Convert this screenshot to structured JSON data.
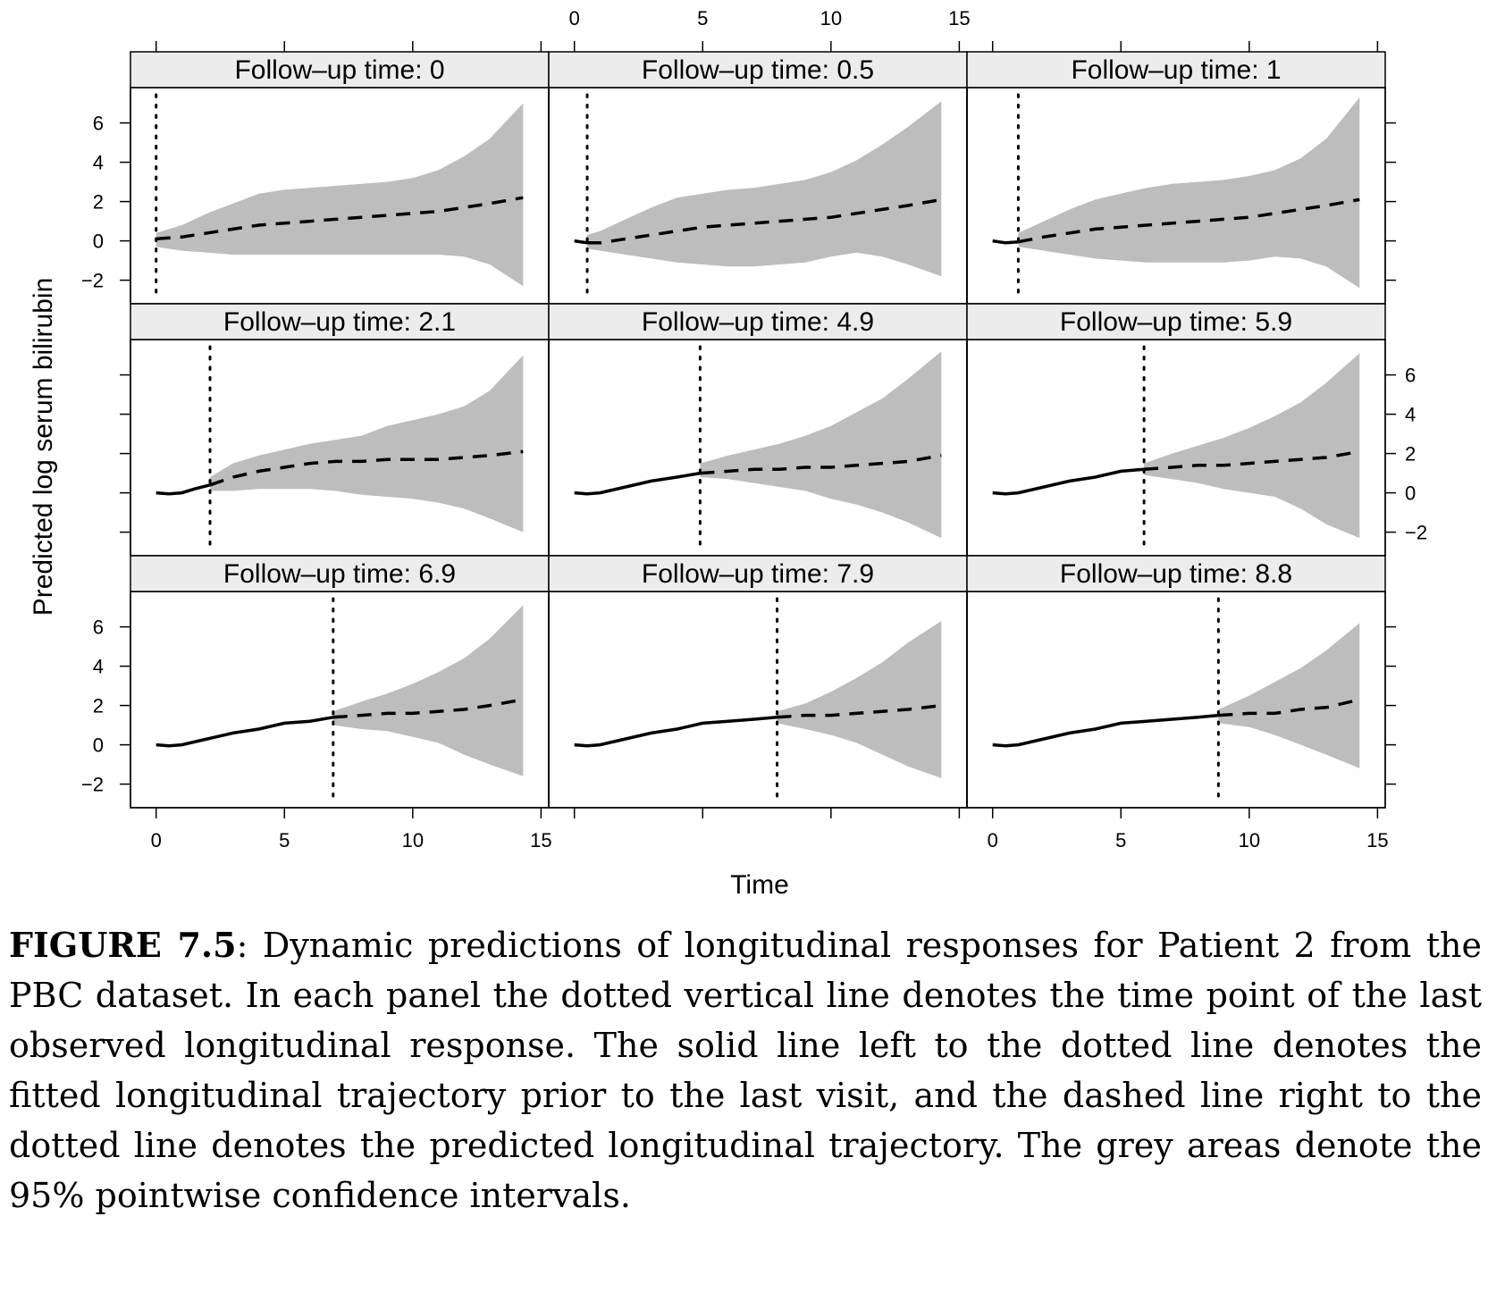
{
  "chart_data": {
    "type": "line",
    "layout": "3x3 panels",
    "panels": [
      {
        "title": "Follow–up time: 0",
        "last_visit": 0,
        "fitted": {
          "x": [
            0
          ],
          "y": [
            0.1
          ]
        },
        "predicted": {
          "x": [
            0,
            1,
            2,
            3,
            4,
            5,
            6,
            7,
            8,
            9,
            10,
            11,
            12,
            13,
            14.3
          ],
          "y": [
            0.1,
            0.2,
            0.4,
            0.6,
            0.8,
            0.9,
            1.0,
            1.1,
            1.2,
            1.3,
            1.4,
            1.5,
            1.7,
            1.9,
            2.2
          ]
        },
        "ci": {
          "x": [
            0,
            1,
            2,
            3,
            4,
            5,
            6,
            7,
            8,
            9,
            10,
            11,
            12,
            13,
            14.3
          ],
          "lower": [
            -0.3,
            -0.5,
            -0.6,
            -0.7,
            -0.7,
            -0.7,
            -0.7,
            -0.7,
            -0.7,
            -0.7,
            -0.7,
            -0.7,
            -0.8,
            -1.2,
            -2.3
          ],
          "upper": [
            0.4,
            0.8,
            1.4,
            1.9,
            2.4,
            2.6,
            2.7,
            2.8,
            2.9,
            3.0,
            3.2,
            3.6,
            4.3,
            5.2,
            7.0
          ]
        }
      },
      {
        "title": "Follow–up time: 0.5",
        "last_visit": 0.5,
        "fitted": {
          "x": [
            0,
            0.5
          ],
          "y": [
            0.0,
            -0.1
          ]
        },
        "predicted": {
          "x": [
            0.5,
            1,
            2,
            3,
            4,
            5,
            6,
            7,
            8,
            9,
            10,
            11,
            12,
            13,
            14.3
          ],
          "y": [
            -0.1,
            -0.1,
            0.1,
            0.3,
            0.5,
            0.7,
            0.8,
            0.9,
            1.0,
            1.1,
            1.2,
            1.4,
            1.6,
            1.8,
            2.1
          ]
        },
        "ci": {
          "x": [
            0.5,
            1,
            2,
            3,
            4,
            5,
            6,
            7,
            8,
            9,
            10,
            11,
            12,
            13,
            14.3
          ],
          "lower": [
            -0.4,
            -0.5,
            -0.7,
            -0.9,
            -1.1,
            -1.2,
            -1.3,
            -1.3,
            -1.2,
            -1.1,
            -0.8,
            -0.6,
            -0.8,
            -1.2,
            -1.8
          ],
          "upper": [
            0.3,
            0.5,
            1.1,
            1.7,
            2.2,
            2.4,
            2.6,
            2.7,
            2.9,
            3.1,
            3.5,
            4.1,
            4.9,
            5.8,
            7.1
          ]
        }
      },
      {
        "title": "Follow–up time: 1",
        "last_visit": 1,
        "fitted": {
          "x": [
            0,
            0.5,
            1
          ],
          "y": [
            0.0,
            -0.1,
            -0.05
          ]
        },
        "predicted": {
          "x": [
            1,
            2,
            3,
            4,
            5,
            6,
            7,
            8,
            9,
            10,
            11,
            12,
            13,
            14.3
          ],
          "y": [
            -0.05,
            0.2,
            0.4,
            0.6,
            0.7,
            0.8,
            0.9,
            1.0,
            1.1,
            1.2,
            1.4,
            1.6,
            1.8,
            2.1
          ]
        },
        "ci": {
          "x": [
            1,
            2,
            3,
            4,
            5,
            6,
            7,
            8,
            9,
            10,
            11,
            12,
            13,
            14.3
          ],
          "lower": [
            -0.3,
            -0.5,
            -0.7,
            -0.9,
            -1.0,
            -1.1,
            -1.1,
            -1.1,
            -1.1,
            -1.0,
            -0.8,
            -0.9,
            -1.3,
            -2.4
          ],
          "upper": [
            0.4,
            1.0,
            1.6,
            2.1,
            2.4,
            2.7,
            2.9,
            3.0,
            3.1,
            3.3,
            3.6,
            4.2,
            5.2,
            7.3
          ]
        }
      },
      {
        "title": "Follow–up time: 2.1",
        "last_visit": 2.1,
        "fitted": {
          "x": [
            0,
            0.5,
            1,
            1.5,
            2.1
          ],
          "y": [
            0.0,
            -0.05,
            0.0,
            0.2,
            0.4
          ]
        },
        "predicted": {
          "x": [
            2.1,
            3,
            4,
            5,
            6,
            7,
            8,
            9,
            10,
            11,
            12,
            13,
            14.3
          ],
          "y": [
            0.4,
            0.8,
            1.1,
            1.3,
            1.5,
            1.6,
            1.6,
            1.7,
            1.7,
            1.7,
            1.8,
            1.9,
            2.1
          ]
        },
        "ci": {
          "x": [
            2.1,
            3,
            4,
            5,
            6,
            7,
            8,
            9,
            10,
            11,
            12,
            13,
            14.3
          ],
          "lower": [
            0.1,
            0.1,
            0.2,
            0.2,
            0.2,
            0.1,
            -0.1,
            -0.2,
            -0.3,
            -0.5,
            -0.8,
            -1.3,
            -2.0
          ],
          "upper": [
            0.8,
            1.5,
            1.9,
            2.2,
            2.5,
            2.7,
            2.9,
            3.4,
            3.7,
            4.0,
            4.4,
            5.2,
            7.0
          ]
        }
      },
      {
        "title": "Follow–up time: 4.9",
        "last_visit": 4.9,
        "fitted": {
          "x": [
            0,
            0.5,
            1,
            2,
            3,
            4,
            4.9
          ],
          "y": [
            0.0,
            -0.05,
            0.0,
            0.3,
            0.6,
            0.8,
            1.0
          ]
        },
        "predicted": {
          "x": [
            4.9,
            6,
            7,
            8,
            9,
            10,
            11,
            12,
            13,
            14.3
          ],
          "y": [
            1.0,
            1.1,
            1.2,
            1.2,
            1.3,
            1.3,
            1.4,
            1.5,
            1.6,
            1.9
          ]
        },
        "ci": {
          "x": [
            4.9,
            6,
            7,
            8,
            9,
            10,
            11,
            12,
            13,
            14.3
          ],
          "lower": [
            0.8,
            0.7,
            0.5,
            0.3,
            0.1,
            -0.3,
            -0.6,
            -1.0,
            -1.5,
            -2.3
          ],
          "upper": [
            1.5,
            1.9,
            2.2,
            2.5,
            2.9,
            3.4,
            4.1,
            4.8,
            5.8,
            7.2
          ]
        }
      },
      {
        "title": "Follow–up time: 5.9",
        "last_visit": 5.9,
        "fitted": {
          "x": [
            0,
            0.5,
            1,
            2,
            3,
            4,
            5,
            5.9
          ],
          "y": [
            0.0,
            -0.05,
            0.0,
            0.3,
            0.6,
            0.8,
            1.1,
            1.2
          ]
        },
        "predicted": {
          "x": [
            5.9,
            7,
            8,
            9,
            10,
            11,
            12,
            13,
            14.3
          ],
          "y": [
            1.2,
            1.3,
            1.4,
            1.4,
            1.5,
            1.6,
            1.7,
            1.8,
            2.1
          ]
        },
        "ci": {
          "x": [
            5.9,
            7,
            8,
            9,
            10,
            11,
            12,
            13,
            14.3
          ],
          "lower": [
            0.9,
            0.7,
            0.5,
            0.2,
            0.0,
            -0.2,
            -0.8,
            -1.6,
            -2.3
          ],
          "upper": [
            1.5,
            2.0,
            2.4,
            2.8,
            3.3,
            3.9,
            4.6,
            5.6,
            7.1
          ]
        }
      },
      {
        "title": "Follow–up time: 6.9",
        "last_visit": 6.9,
        "fitted": {
          "x": [
            0,
            0.5,
            1,
            2,
            3,
            4,
            5,
            6,
            6.9
          ],
          "y": [
            0.0,
            -0.05,
            0.0,
            0.3,
            0.6,
            0.8,
            1.1,
            1.2,
            1.4
          ]
        },
        "predicted": {
          "x": [
            6.9,
            8,
            9,
            10,
            11,
            12,
            13,
            14.3
          ],
          "y": [
            1.4,
            1.5,
            1.6,
            1.6,
            1.7,
            1.8,
            2.0,
            2.3
          ]
        },
        "ci": {
          "x": [
            6.9,
            8,
            9,
            10,
            11,
            12,
            13,
            14.3
          ],
          "lower": [
            1.0,
            0.8,
            0.7,
            0.4,
            0.1,
            -0.5,
            -1.0,
            -1.6
          ],
          "upper": [
            1.7,
            2.2,
            2.6,
            3.1,
            3.7,
            4.4,
            5.4,
            7.1
          ]
        }
      },
      {
        "title": "Follow–up time: 7.9",
        "last_visit": 7.9,
        "fitted": {
          "x": [
            0,
            0.5,
            1,
            2,
            3,
            4,
            5,
            6,
            7,
            7.9
          ],
          "y": [
            0.0,
            -0.05,
            0.0,
            0.3,
            0.6,
            0.8,
            1.1,
            1.2,
            1.3,
            1.4
          ]
        },
        "predicted": {
          "x": [
            7.9,
            9,
            10,
            11,
            12,
            13,
            14.3
          ],
          "y": [
            1.4,
            1.5,
            1.5,
            1.6,
            1.7,
            1.8,
            2.0
          ]
        },
        "ci": {
          "x": [
            7.9,
            9,
            10,
            11,
            12,
            13,
            14.3
          ],
          "lower": [
            1.1,
            0.8,
            0.5,
            0.1,
            -0.5,
            -1.1,
            -1.7
          ],
          "upper": [
            1.7,
            2.1,
            2.7,
            3.4,
            4.2,
            5.2,
            6.3
          ]
        }
      },
      {
        "title": "Follow–up time: 8.8",
        "last_visit": 8.8,
        "fitted": {
          "x": [
            0,
            0.5,
            1,
            2,
            3,
            4,
            5,
            6,
            7,
            8,
            8.8
          ],
          "y": [
            0.0,
            -0.05,
            0.0,
            0.3,
            0.6,
            0.8,
            1.1,
            1.2,
            1.3,
            1.4,
            1.5
          ]
        },
        "predicted": {
          "x": [
            8.8,
            10,
            11,
            12,
            13,
            14.3
          ],
          "y": [
            1.5,
            1.6,
            1.6,
            1.8,
            1.9,
            2.3
          ]
        },
        "ci": {
          "x": [
            8.8,
            10,
            11,
            12,
            13,
            14.3
          ],
          "lower": [
            1.1,
            0.9,
            0.5,
            0.0,
            -0.5,
            -1.2
          ],
          "upper": [
            1.8,
            2.5,
            3.2,
            3.9,
            4.8,
            6.2
          ]
        }
      }
    ],
    "xlabel": "Time",
    "ylabel": "Predicted log serum bilirubin",
    "xlim": [
      -1,
      15.3
    ],
    "ylim": [
      -3.2,
      7.8
    ],
    "xticks": [
      0,
      5,
      10,
      15
    ],
    "yticks": [
      -2,
      0,
      2,
      4,
      6
    ],
    "xtick_labels": [
      "0",
      "5",
      "10",
      "15"
    ],
    "ytick_labels": [
      "−2",
      "0",
      "2",
      "4",
      "6"
    ],
    "band_color": "#bdbdbd",
    "strip_color": "#ececec"
  },
  "caption": {
    "label": "FIGURE 7.5",
    "text": ": Dynamic predictions of longitudinal responses for Patient 2 from the PBC dataset. In each panel the dotted vertical line denotes the time point of the last observed longitudinal response. The solid line left to the dotted line denotes the fitted longitudinal trajectory prior to the last visit, and the dashed line right to the dotted line denotes the predicted longitudinal trajectory. The grey areas denote the 95% pointwise confidence intervals."
  }
}
